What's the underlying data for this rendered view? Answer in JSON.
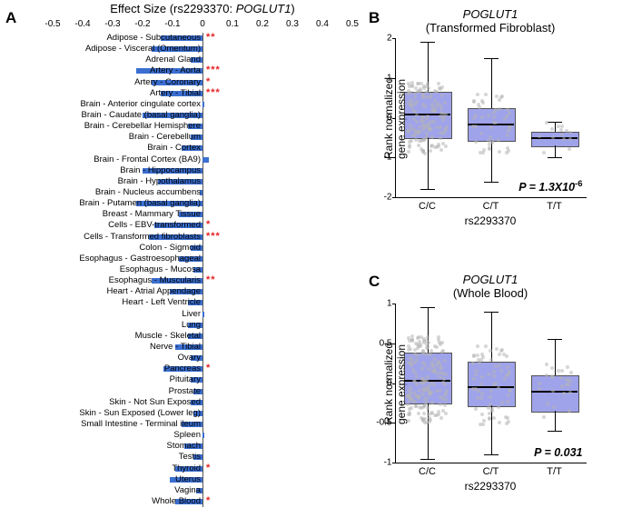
{
  "panelA": {
    "label": "A",
    "title_prefix": "Effect Size (rs2293370: ",
    "gene": "POGLUT1",
    "title_suffix": ")",
    "xlim": [
      -0.5,
      0.5
    ],
    "xticks": [
      -0.5,
      -0.4,
      -0.3,
      -0.2,
      -0.1,
      0,
      0.1,
      0.2,
      0.3,
      0.4,
      0.5
    ],
    "bar_color": "#3b6fd1",
    "star_color": "#e52222",
    "label_fontsize": 9.5,
    "tissues": [
      {
        "name": "Adipose - Subcutaneous",
        "effect": -0.14,
        "stars": "**"
      },
      {
        "name": "Adipose - Visceral (Omentum)",
        "effect": -0.17,
        "stars": ""
      },
      {
        "name": "Adrenal Gland",
        "effect": -0.04,
        "stars": ""
      },
      {
        "name": "Artery - Aorta",
        "effect": -0.22,
        "stars": "***"
      },
      {
        "name": "Artery - Coronary",
        "effect": -0.17,
        "stars": "*"
      },
      {
        "name": "Artery - Tibial",
        "effect": -0.14,
        "stars": "***"
      },
      {
        "name": "Brain - Anterior cingulate cortex",
        "effect": 0.005,
        "stars": ""
      },
      {
        "name": "Brain - Caudate (basal ganglia)",
        "effect": -0.2,
        "stars": ""
      },
      {
        "name": "Brain - Cerebellar Hemisphere",
        "effect": -0.05,
        "stars": ""
      },
      {
        "name": "Brain - Cerebellum",
        "effect": -0.04,
        "stars": ""
      },
      {
        "name": "Brain - Cortex",
        "effect": -0.07,
        "stars": ""
      },
      {
        "name": "Brain - Frontal Cortex (BA9)",
        "effect": 0.02,
        "stars": ""
      },
      {
        "name": "Brain - Hippocampus",
        "effect": -0.2,
        "stars": ""
      },
      {
        "name": "Brain - Hypothalamus",
        "effect": -0.15,
        "stars": ""
      },
      {
        "name": "Brain - Nucleus accumbens",
        "effect": -0.01,
        "stars": ""
      },
      {
        "name": "Brain - Putamen (basal ganglia)",
        "effect": -0.22,
        "stars": ""
      },
      {
        "name": "Breast - Mammary Tissue",
        "effect": -0.08,
        "stars": ""
      },
      {
        "name": "Cells - EBV-transformed",
        "effect": -0.16,
        "stars": "*"
      },
      {
        "name": "Cells - Transformed fibroblasts",
        "effect": -0.18,
        "stars": "***"
      },
      {
        "name": "Colon - Sigmoid",
        "effect": -0.04,
        "stars": ""
      },
      {
        "name": "Esophagus - Gastroesophageal",
        "effect": -0.08,
        "stars": ""
      },
      {
        "name": "Esophagus - Mucosa",
        "effect": -0.03,
        "stars": ""
      },
      {
        "name": "Esophagus - Muscularis",
        "effect": -0.17,
        "stars": "**"
      },
      {
        "name": "Heart - Atrial Appendage",
        "effect": -0.11,
        "stars": ""
      },
      {
        "name": "Heart - Left Ventricle",
        "effect": -0.05,
        "stars": ""
      },
      {
        "name": "Liver",
        "effect": 0.005,
        "stars": ""
      },
      {
        "name": "Lung",
        "effect": -0.05,
        "stars": ""
      },
      {
        "name": "Muscle - Skeletal",
        "effect": -0.05,
        "stars": ""
      },
      {
        "name": "Nerve - Tibial",
        "effect": -0.09,
        "stars": ""
      },
      {
        "name": "Ovary",
        "effect": -0.04,
        "stars": ""
      },
      {
        "name": "Pancreas",
        "effect": -0.13,
        "stars": "*"
      },
      {
        "name": "Pituitary",
        "effect": -0.04,
        "stars": ""
      },
      {
        "name": "Prostate",
        "effect": -0.03,
        "stars": ""
      },
      {
        "name": "Skin - Not Sun Exposed",
        "effect": -0.04,
        "stars": ""
      },
      {
        "name": "Skin - Sun Exposed (Lower leg)",
        "effect": -0.03,
        "stars": ""
      },
      {
        "name": "Small Intestine - Terminal ileum",
        "effect": -0.07,
        "stars": ""
      },
      {
        "name": "Spleen",
        "effect": 0.005,
        "stars": ""
      },
      {
        "name": "Stomach",
        "effect": -0.06,
        "stars": ""
      },
      {
        "name": "Testis",
        "effect": -0.03,
        "stars": ""
      },
      {
        "name": "Thyroid",
        "effect": -0.09,
        "stars": "*"
      },
      {
        "name": "Uterus",
        "effect": -0.11,
        "stars": ""
      },
      {
        "name": "Vagina",
        "effect": -0.02,
        "stars": ""
      },
      {
        "name": "Whole Blood",
        "effect": -0.09,
        "stars": "*"
      }
    ]
  },
  "panelB": {
    "label": "B",
    "gene": "POGLUT1",
    "subtitle": "(Transformed Fibroblast)",
    "ylabel": "Rank normalized gene expression",
    "xlabel": "rs2293370",
    "ylim": [
      -2,
      2
    ],
    "yticks": [
      -2,
      -1,
      0,
      1,
      2
    ],
    "categories": [
      "C/C",
      "C/T",
      "T/T"
    ],
    "box_color": "#8a8fe6",
    "pvalue_html": "P = 1.3X10<sup>-6</sup>",
    "boxes": [
      {
        "q1": -0.5,
        "median": 0.1,
        "q3": 0.65,
        "whisker_lo": -1.8,
        "whisker_hi": 1.9,
        "n_points": 140,
        "jitter_center": 0.0,
        "spread": 0.9
      },
      {
        "q1": -0.55,
        "median": -0.15,
        "q3": 0.25,
        "whisker_lo": -1.6,
        "whisker_hi": 1.5,
        "n_points": 50,
        "jitter_center": -0.15,
        "spread": 0.75
      },
      {
        "q1": -0.7,
        "median": -0.5,
        "q3": -0.35,
        "whisker_lo": -1.0,
        "whisker_hi": -0.1,
        "n_points": 14,
        "jitter_center": -0.5,
        "spread": 0.4
      }
    ]
  },
  "panelC": {
    "label": "C",
    "gene": "POGLUT1",
    "subtitle": "(Whole Blood)",
    "ylabel": "Rank normalized gene expression",
    "xlabel": "rs2293370",
    "ylim": [
      -1.0,
      1.0
    ],
    "yticks": [
      -1.0,
      -0.5,
      0,
      0.5,
      1.0
    ],
    "categories": [
      "C/C",
      "C/T",
      "T/T"
    ],
    "box_color": "#8a8fe6",
    "pvalue_html": "P = 0.031",
    "boxes": [
      {
        "q1": -0.25,
        "median": 0.04,
        "q3": 0.38,
        "whisker_lo": -0.95,
        "whisker_hi": 0.95,
        "n_points": 180,
        "jitter_center": 0.05,
        "spread": 0.55
      },
      {
        "q1": -0.28,
        "median": -0.04,
        "q3": 0.27,
        "whisker_lo": -0.9,
        "whisker_hi": 0.9,
        "n_points": 70,
        "jitter_center": -0.03,
        "spread": 0.5
      },
      {
        "q1": -0.35,
        "median": -0.1,
        "q3": 0.1,
        "whisker_lo": -0.6,
        "whisker_hi": 0.55,
        "n_points": 25,
        "jitter_center": -0.1,
        "spread": 0.35
      }
    ]
  }
}
